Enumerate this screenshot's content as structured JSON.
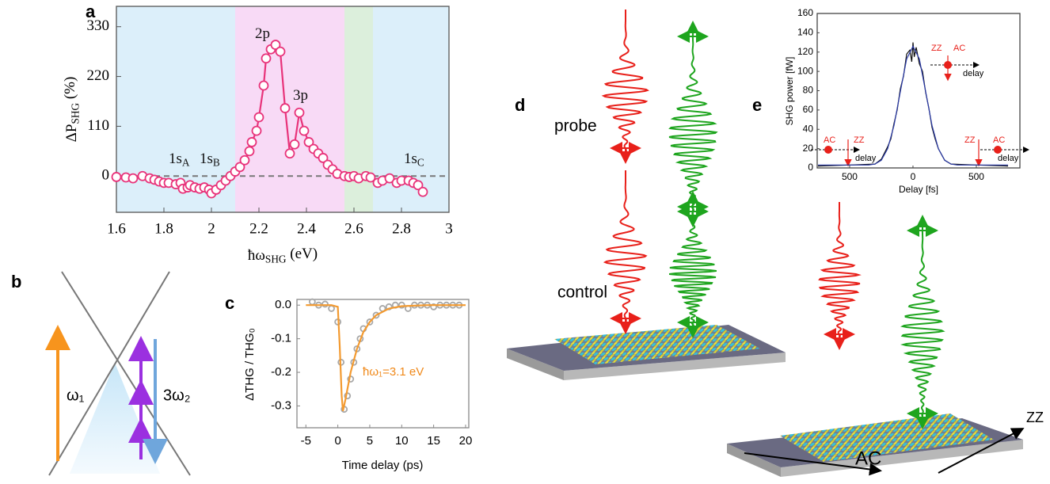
{
  "panels": [
    "a",
    "b",
    "c",
    "d",
    "e"
  ],
  "diagram": {
    "omega1": "ω₁",
    "omega2": "3ω₂",
    "probe": "probe",
    "control": "control",
    "ac": "AC",
    "zz": "ZZ",
    "inset_labels": [
      "ZZ",
      "AC",
      "delay",
      "AC",
      "ZZ",
      "delay",
      "ZZ",
      "AC",
      "delay"
    ]
  },
  "chart_data": [
    {
      "type": "line",
      "xlabel": [
        {
          "text": "ħω"
        },
        {
          "text": "SHG",
          "sub": true
        },
        {
          "text": " (eV)"
        }
      ],
      "ylabel": [
        {
          "text": "ΔP"
        },
        {
          "text": "SHG",
          "sub": true
        },
        {
          "text": " (%)"
        }
      ],
      "xlim": [
        1.6,
        3
      ],
      "ylim": [
        -80,
        375
      ],
      "xticks": [
        1.6,
        1.8,
        2,
        2.2,
        2.4,
        2.6,
        2.8,
        3
      ],
      "yticks": [
        0,
        110,
        220,
        330
      ],
      "regions": [
        {
          "from": 1.6,
          "to": 2.1,
          "color": "#dceffa"
        },
        {
          "from": 2.1,
          "to": 2.56,
          "color": "#f8daf6"
        },
        {
          "from": 2.56,
          "to": 2.68,
          "color": "#dcefdc"
        },
        {
          "from": 2.68,
          "to": 3,
          "color": "#dceffa"
        }
      ],
      "hline": 0,
      "annotations": [
        {
          "parts": [
            {
              "text": "1s"
            },
            {
              "text": "A",
              "sub": true
            }
          ]
        },
        {
          "parts": [
            {
              "text": "1s"
            },
            {
              "text": "B",
              "sub": true
            }
          ]
        },
        {
          "parts": [
            {
              "text": "2p"
            }
          ]
        },
        {
          "parts": [
            {
              "text": "3p"
            }
          ]
        },
        {
          "parts": [
            {
              "text": "1s"
            },
            {
              "text": "C",
              "sub": true
            }
          ]
        }
      ],
      "series": [
        {
          "type": "line",
          "markers": true,
          "color": "#e8337a",
          "x": [
            1.6,
            1.64,
            1.67,
            1.71,
            1.74,
            1.76,
            1.78,
            1.8,
            1.82,
            1.85,
            1.87,
            1.88,
            1.9,
            1.91,
            1.93,
            1.95,
            1.97,
            1.99,
            2.0,
            2.02,
            2.04,
            2.06,
            2.08,
            2.1,
            2.12,
            2.14,
            2.16,
            2.17,
            2.19,
            2.2,
            2.22,
            2.23,
            2.25,
            2.27,
            2.29,
            2.31,
            2.33,
            2.35,
            2.37,
            2.39,
            2.41,
            2.43,
            2.45,
            2.47,
            2.49,
            2.51,
            2.53,
            2.56,
            2.58,
            2.6,
            2.62,
            2.65,
            2.67,
            2.7,
            2.72,
            2.75,
            2.78,
            2.8,
            2.83,
            2.85,
            2.87,
            2.89
          ],
          "values": [
            -2,
            -3,
            -5,
            0,
            -5,
            -8,
            -12,
            -15,
            -15,
            -18,
            -15,
            -28,
            -25,
            -20,
            -25,
            -28,
            -25,
            -30,
            -38,
            -30,
            -20,
            -10,
            0,
            10,
            20,
            35,
            55,
            75,
            100,
            130,
            200,
            260,
            280,
            290,
            275,
            150,
            50,
            70,
            140,
            100,
            75,
            60,
            50,
            40,
            25,
            15,
            5,
            0,
            -2,
            0,
            -5,
            0,
            -3,
            -15,
            -10,
            -5,
            -15,
            -10,
            -10,
            -15,
            -20,
            -35
          ]
        }
      ]
    },
    {
      "type": "scatter",
      "xlabel": [
        {
          "text": "Time delay (ps)"
        }
      ],
      "ylabel": [
        {
          "text": "ΔTHG / THG₀"
        }
      ],
      "xlim": [
        -6.4,
        20.5
      ],
      "ylim": [
        -0.365,
        0.017
      ],
      "xticks": [
        -5,
        0,
        5,
        10,
        15,
        20
      ],
      "yticks": [
        {
          "value": 0,
          "label": "0.0"
        },
        -0.1,
        -0.2,
        -0.3
      ],
      "annotations": [
        {
          "parts": [
            {
              "text": "ħω₁=3.1 eV"
            }
          ],
          "color": "#f08a1c"
        }
      ],
      "series": [
        {
          "type": "scatter",
          "color": "#a8a8a8",
          "x": [
            -4,
            -3,
            -2,
            -1,
            0,
            0.5,
            1,
            1.5,
            2,
            2.5,
            3,
            3.5,
            4,
            5,
            6,
            7,
            8,
            9,
            10,
            11,
            12,
            13,
            14,
            15,
            16,
            17,
            18,
            19
          ],
          "values": [
            0.01,
            0,
            0.003,
            -0.01,
            -0.05,
            -0.17,
            -0.31,
            -0.27,
            -0.22,
            -0.17,
            -0.13,
            -0.1,
            -0.07,
            -0.05,
            -0.03,
            -0.01,
            -0.005,
            0,
            0,
            -0.01,
            0,
            0,
            0,
            -0.005,
            0,
            0,
            0,
            0
          ]
        },
        {
          "type": "line",
          "color": "#f39a30",
          "x": [
            -5,
            -1,
            0,
            0.3,
            0.6,
            0.8,
            1.2,
            2,
            3,
            4,
            5,
            6,
            8,
            10,
            14,
            20
          ],
          "values": [
            0,
            0,
            -0.005,
            -0.12,
            -0.27,
            -0.315,
            -0.28,
            -0.2,
            -0.13,
            -0.08,
            -0.05,
            -0.03,
            -0.01,
            -0.003,
            0,
            0
          ]
        }
      ]
    },
    {
      "type": "line",
      "xlabel": [
        {
          "text": "Delay [fs]"
        }
      ],
      "ylabel": [
        {
          "text": "SHG power [fW]"
        }
      ],
      "xlim": [
        -756,
        844
      ],
      "ylim": [
        0,
        160
      ],
      "xticks": [
        {
          "value": -500,
          "label": "500"
        },
        0,
        500
      ],
      "yticks": [
        0,
        20,
        40,
        60,
        80,
        100,
        120,
        140,
        160
      ],
      "series": [
        {
          "type": "line",
          "color": "#111111",
          "x": [
            -750,
            -500,
            -300,
            -250,
            -200,
            -175,
            -150,
            -125,
            -100,
            -75,
            -50,
            -25,
            -10,
            0,
            10,
            25,
            50,
            75,
            100,
            125,
            150,
            175,
            200,
            250,
            300,
            500,
            750
          ],
          "values": [
            2,
            3,
            4,
            9,
            22,
            30,
            46,
            60,
            82,
            95,
            118,
            122,
            110,
            130,
            115,
            125,
            108,
            100,
            78,
            62,
            42,
            30,
            20,
            8,
            4,
            3,
            2
          ]
        },
        {
          "type": "line",
          "color": "#2a3aa8",
          "x": [
            -750,
            -700,
            -650,
            -600,
            -550,
            -500,
            -450,
            -400,
            -350,
            -300,
            -250,
            -200,
            -150,
            -100,
            -50,
            0,
            50,
            100,
            150,
            200,
            250,
            300,
            350,
            400,
            450,
            500,
            550,
            600,
            650,
            700,
            750
          ],
          "values": [
            3,
            3,
            3,
            3,
            3,
            3,
            3,
            3,
            3,
            4,
            8,
            20,
            44,
            79,
            113,
            126,
            113,
            79,
            44,
            20,
            8,
            4,
            3,
            3,
            3,
            3,
            3,
            3,
            3,
            3,
            3
          ]
        }
      ]
    }
  ]
}
